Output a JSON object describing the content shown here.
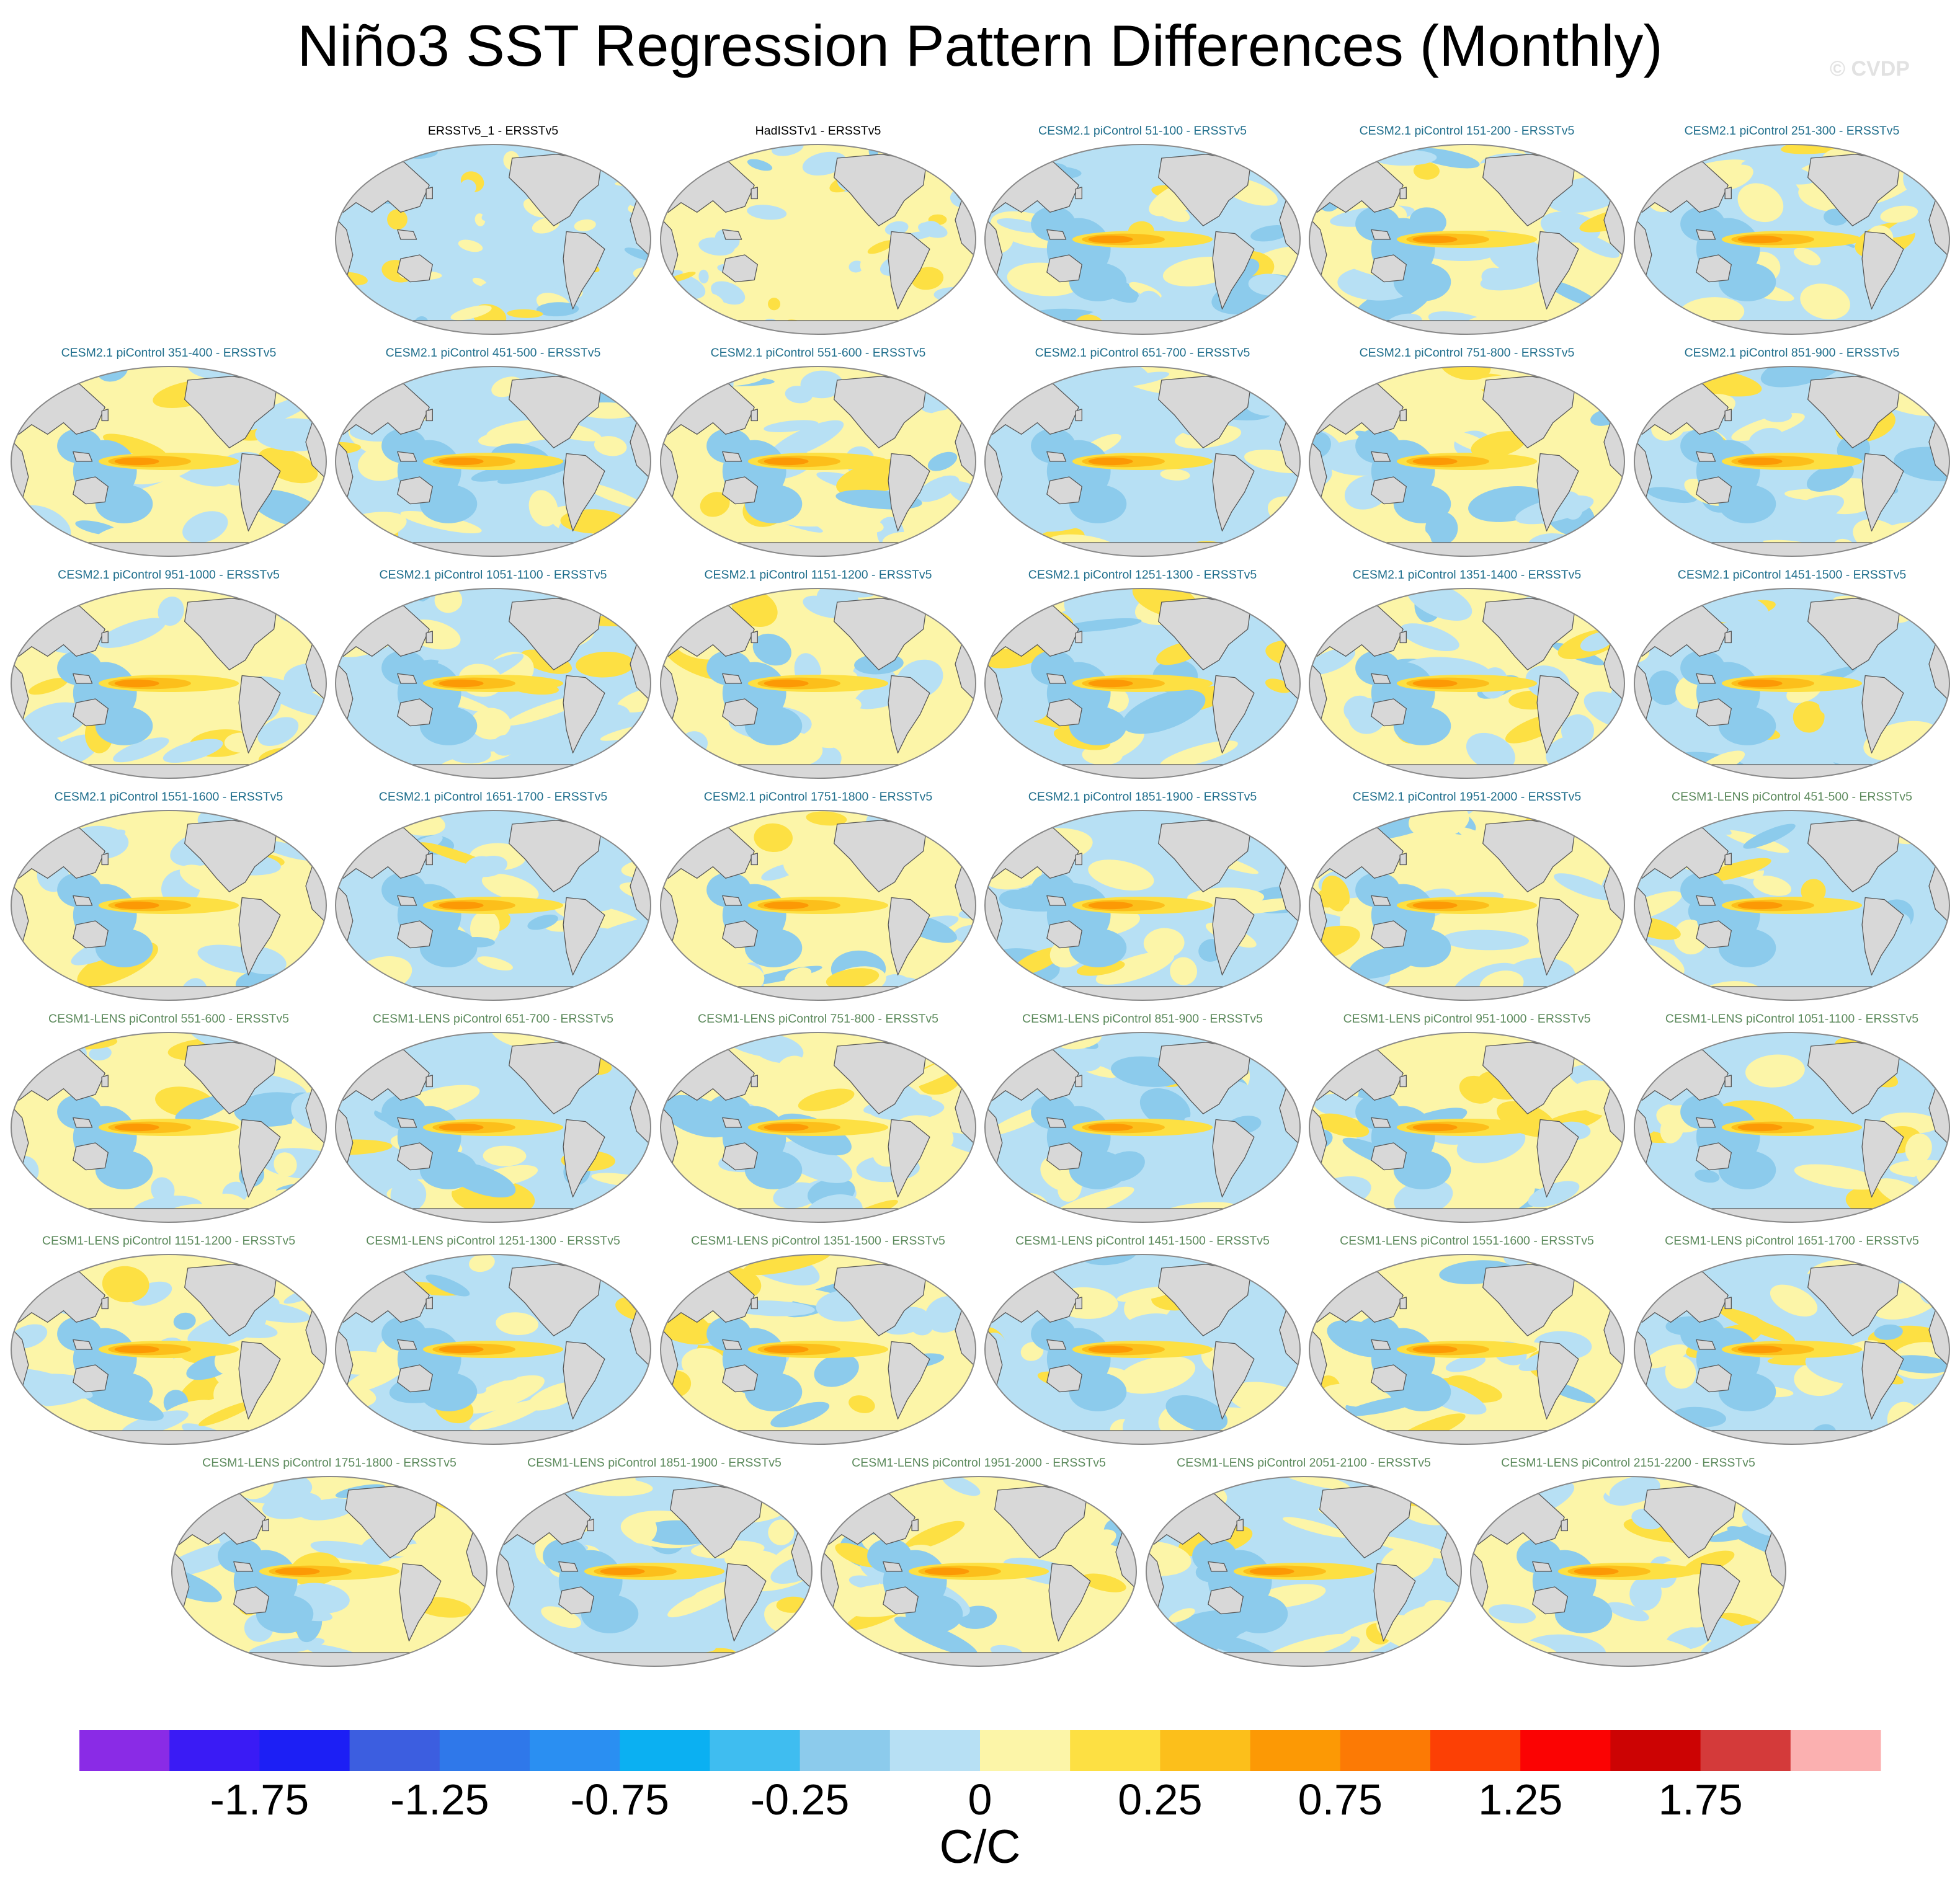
{
  "title": "Niño3 SST Regression Pattern Differences (Monthly)",
  "watermark": "© CVDP",
  "units": "C/C",
  "colors": {
    "land": "#d8d8d8",
    "coast": "#555555",
    "map_outline": "#888888"
  },
  "colorbar": {
    "colors": [
      "#8a2be6",
      "#3a1bf5",
      "#1c1ff5",
      "#3c5ee0",
      "#2f78ea",
      "#2a8ff2",
      "#0bb0f2",
      "#3fbdf0",
      "#8ccbec",
      "#b7e0f4",
      "#fcf5a8",
      "#fde043",
      "#fcbf1b",
      "#fc9905",
      "#fc7a05",
      "#fc4005",
      "#fb0303",
      "#cc0303",
      "#d43a3a",
      "#fbb0b0"
    ],
    "tick_labels": [
      "-1.75",
      "-1.25",
      "-0.75",
      "-0.25",
      "0",
      "0.25",
      "0.75",
      "1.25",
      "1.75"
    ]
  },
  "panels": [
    {
      "label": "ERSSTv5_1 - ERSSTv5",
      "group": "obs"
    },
    {
      "label": "HadISSTv1 - ERSSTv5",
      "group": "obs"
    },
    {
      "label": "CESM2.1 piControl 51-100 - ERSSTv5",
      "group": "c2"
    },
    {
      "label": "CESM2.1 piControl 151-200 - ERSSTv5",
      "group": "c2"
    },
    {
      "label": "CESM2.1 piControl 251-300 - ERSSTv5",
      "group": "c2"
    },
    {
      "label": "CESM2.1 piControl 351-400 - ERSSTv5",
      "group": "c2"
    },
    {
      "label": "CESM2.1 piControl 451-500 - ERSSTv5",
      "group": "c2"
    },
    {
      "label": "CESM2.1 piControl 551-600 - ERSSTv5",
      "group": "c2"
    },
    {
      "label": "CESM2.1 piControl 651-700 - ERSSTv5",
      "group": "c2"
    },
    {
      "label": "CESM2.1 piControl 751-800 - ERSSTv5",
      "group": "c2"
    },
    {
      "label": "CESM2.1 piControl 851-900 - ERSSTv5",
      "group": "c2"
    },
    {
      "label": "CESM2.1 piControl 951-1000 - ERSSTv5",
      "group": "c2"
    },
    {
      "label": "CESM2.1 piControl 1051-1100 - ERSSTv5",
      "group": "c2"
    },
    {
      "label": "CESM2.1 piControl 1151-1200 - ERSSTv5",
      "group": "c2"
    },
    {
      "label": "CESM2.1 piControl 1251-1300 - ERSSTv5",
      "group": "c2"
    },
    {
      "label": "CESM2.1 piControl 1351-1400 - ERSSTv5",
      "group": "c2"
    },
    {
      "label": "CESM2.1 piControl 1451-1500 - ERSSTv5",
      "group": "c2"
    },
    {
      "label": "CESM2.1 piControl 1551-1600 - ERSSTv5",
      "group": "c2"
    },
    {
      "label": "CESM2.1 piControl 1651-1700 - ERSSTv5",
      "group": "c2"
    },
    {
      "label": "CESM2.1 piControl 1751-1800 - ERSSTv5",
      "group": "c2"
    },
    {
      "label": "CESM2.1 piControl 1851-1900 - ERSSTv5",
      "group": "c2"
    },
    {
      "label": "CESM2.1 piControl 1951-2000 - ERSSTv5",
      "group": "c2"
    },
    {
      "label": "CESM1-LENS piControl 451-500 - ERSSTv5",
      "group": "c1"
    },
    {
      "label": "CESM1-LENS piControl 551-600 - ERSSTv5",
      "group": "c1"
    },
    {
      "label": "CESM1-LENS piControl 651-700 - ERSSTv5",
      "group": "c1"
    },
    {
      "label": "CESM1-LENS piControl 751-800 - ERSSTv5",
      "group": "c1"
    },
    {
      "label": "CESM1-LENS piControl 851-900 - ERSSTv5",
      "group": "c1"
    },
    {
      "label": "CESM1-LENS piControl 951-1000 - ERSSTv5",
      "group": "c1"
    },
    {
      "label": "CESM1-LENS piControl 1051-1100 - ERSSTv5",
      "group": "c1"
    },
    {
      "label": "CESM1-LENS piControl 1151-1200 - ERSSTv5",
      "group": "c1"
    },
    {
      "label": "CESM1-LENS piControl 1251-1300 - ERSSTv5",
      "group": "c1"
    },
    {
      "label": "CESM1-LENS piControl 1351-1500 - ERSSTv5",
      "group": "c1"
    },
    {
      "label": "CESM1-LENS piControl 1451-1500 - ERSSTv5",
      "group": "c1"
    },
    {
      "label": "CESM1-LENS piControl 1551-1600 - ERSSTv5",
      "group": "c1"
    },
    {
      "label": "CESM1-LENS piControl 1651-1700 - ERSSTv5",
      "group": "c1"
    },
    {
      "label": "CESM1-LENS piControl 1751-1800 - ERSSTv5",
      "group": "c1"
    },
    {
      "label": "CESM1-LENS piControl 1851-1900 - ERSSTv5",
      "group": "c1"
    },
    {
      "label": "CESM1-LENS piControl 1951-2000 - ERSSTv5",
      "group": "c1"
    },
    {
      "label": "CESM1-LENS piControl 2051-2100 - ERSSTv5",
      "group": "c1"
    },
    {
      "label": "CESM1-LENS piControl 2151-2200 - ERSSTv5",
      "group": "c1"
    }
  ]
}
